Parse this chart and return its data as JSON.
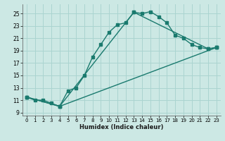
{
  "xlabel": "Humidex (Indice chaleur)",
  "bg_color": "#cce8e4",
  "grid_color": "#aad4d0",
  "line_color": "#1a7a6e",
  "xlim": [
    -0.5,
    23.5
  ],
  "ylim": [
    8.5,
    26.5
  ],
  "xticks": [
    0,
    1,
    2,
    3,
    4,
    5,
    6,
    7,
    8,
    9,
    10,
    11,
    12,
    13,
    14,
    15,
    16,
    17,
    18,
    19,
    20,
    21,
    22,
    23
  ],
  "yticks": [
    9,
    11,
    13,
    15,
    17,
    19,
    21,
    23,
    25
  ],
  "line1_x": [
    0,
    1,
    2,
    3,
    4,
    5,
    6,
    7,
    8,
    9,
    10,
    11,
    12,
    13,
    14,
    15,
    16,
    17,
    18,
    19,
    20,
    21,
    22,
    23
  ],
  "line1_y": [
    11.5,
    11.0,
    11.0,
    10.5,
    10.0,
    12.5,
    13.0,
    15.0,
    18.0,
    20.0,
    22.0,
    23.2,
    23.5,
    25.2,
    25.0,
    25.3,
    24.5,
    23.5,
    21.5,
    21.0,
    20.0,
    19.5,
    19.3,
    19.5
  ],
  "line2_x": [
    0,
    4,
    13,
    22,
    23
  ],
  "line2_y": [
    11.5,
    10.0,
    25.2,
    19.3,
    19.5
  ],
  "line3_x": [
    0,
    4,
    23
  ],
  "line3_y": [
    11.5,
    10.0,
    19.5
  ],
  "marker_size": 2.5,
  "line_width": 1.0
}
